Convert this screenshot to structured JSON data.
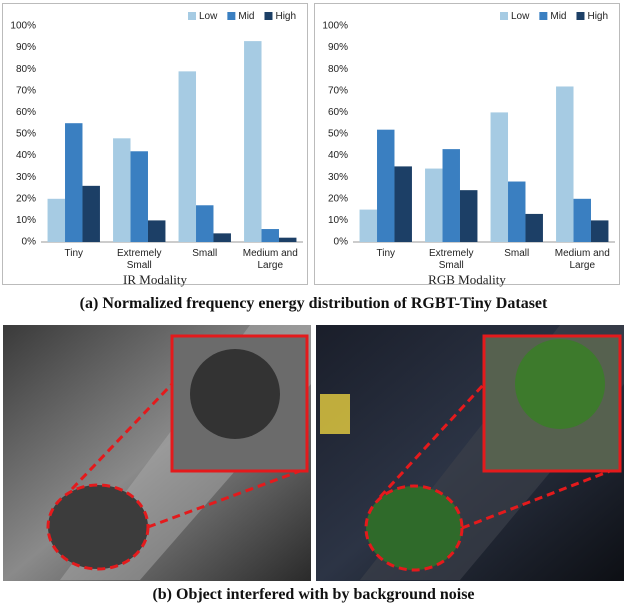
{
  "chart_data": [
    {
      "type": "bar",
      "xlabel": "IR Modality",
      "categories": [
        "Tiny",
        "Extremely Small",
        "Small",
        "Medium and Large"
      ],
      "series": [
        {
          "name": "Low",
          "color": "#a6cbe3",
          "values": [
            20,
            48,
            79,
            93
          ]
        },
        {
          "name": "Mid",
          "color": "#3a7fc1",
          "values": [
            55,
            42,
            17,
            6
          ]
        },
        {
          "name": "High",
          "color": "#1c3f66",
          "values": [
            26,
            10,
            4,
            2
          ]
        }
      ],
      "ylim": [
        0,
        100
      ],
      "yticks": [
        {
          "value": 0,
          "label": "0%"
        },
        {
          "value": 10,
          "label": "10%"
        },
        {
          "value": 20,
          "label": "20%"
        },
        {
          "value": 30,
          "label": "30%"
        },
        {
          "value": 40,
          "label": "40%"
        },
        {
          "value": 50,
          "label": "50%"
        },
        {
          "value": 60,
          "label": "60%"
        },
        {
          "value": 70,
          "label": "70%"
        },
        {
          "value": 80,
          "label": "80%"
        },
        {
          "value": 90,
          "label": "90%"
        },
        {
          "value": 100,
          "label": "100%"
        }
      ],
      "grid": false,
      "legend": "top-right"
    },
    {
      "type": "bar",
      "xlabel": "RGB Modality",
      "categories": [
        "Tiny",
        "Extremely Small",
        "Small",
        "Medium and Large"
      ],
      "series": [
        {
          "name": "Low",
          "color": "#a6cbe3",
          "values": [
            15,
            34,
            60,
            72
          ]
        },
        {
          "name": "Mid",
          "color": "#3a7fc1",
          "values": [
            52,
            43,
            28,
            20
          ]
        },
        {
          "name": "High",
          "color": "#1c3f66",
          "values": [
            35,
            24,
            13,
            10
          ]
        }
      ],
      "ylim": [
        0,
        100
      ],
      "yticks": [
        {
          "value": 0,
          "label": "0%"
        },
        {
          "value": 10,
          "label": "10%"
        },
        {
          "value": 20,
          "label": "20%"
        },
        {
          "value": 30,
          "label": "30%"
        },
        {
          "value": 40,
          "label": "40%"
        },
        {
          "value": 50,
          "label": "50%"
        },
        {
          "value": 60,
          "label": "60%"
        },
        {
          "value": 70,
          "label": "70%"
        },
        {
          "value": 80,
          "label": "80%"
        },
        {
          "value": 90,
          "label": "90%"
        },
        {
          "value": 100,
          "label": "100%"
        }
      ],
      "grid": false,
      "legend": "top-right"
    }
  ],
  "figure": {
    "caption_a": "(a) Normalized frequency energy distribution of RGBT-Tiny Dataset",
    "caption_b": "(b) Object interfered with by background noise"
  }
}
